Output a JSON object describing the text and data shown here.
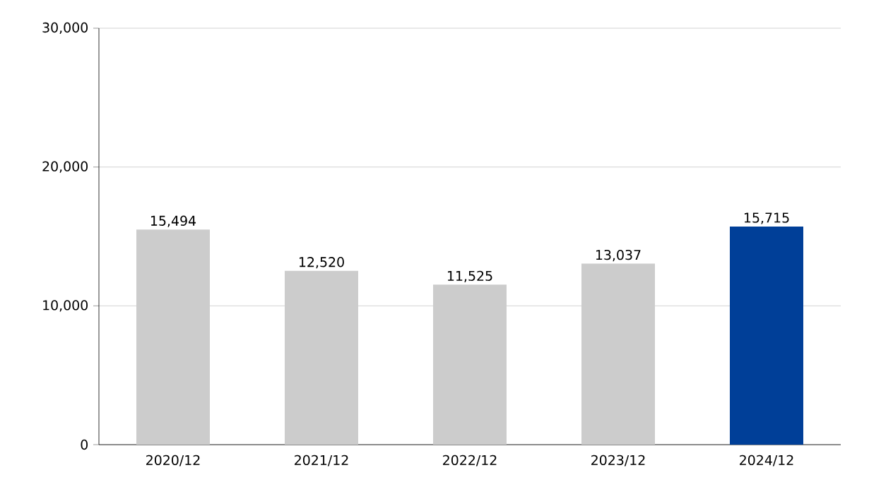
{
  "chart_data": {
    "type": "bar",
    "categories": [
      "2020/12",
      "2021/12",
      "2022/12",
      "2023/12",
      "2024/12"
    ],
    "values": [
      15494,
      12520,
      11525,
      13037,
      15715
    ],
    "value_labels": [
      "15,494",
      "12,520",
      "11,525",
      "13,037",
      "15,715"
    ],
    "colors": [
      "#cccccc",
      "#cccccc",
      "#cccccc",
      "#cccccc",
      "#003f98"
    ],
    "ylim": [
      0,
      30000
    ],
    "yticks": [
      {
        "value": 0,
        "label": "0"
      },
      {
        "value": 10000,
        "label": "10,000"
      },
      {
        "value": 20000,
        "label": "20,000"
      },
      {
        "value": 30000,
        "label": "30,000"
      }
    ],
    "grid": "y"
  }
}
